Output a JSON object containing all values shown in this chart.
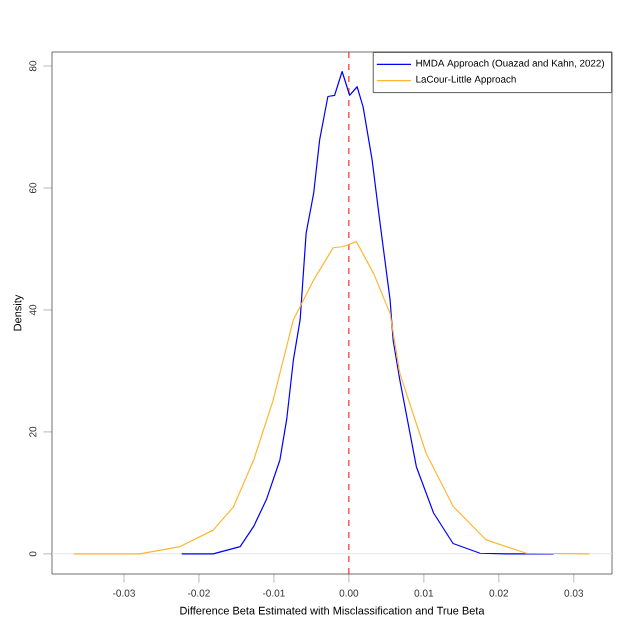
{
  "chart_data": {
    "type": "line",
    "xlabel": "Difference Beta Estimated with Misclassification and True Beta",
    "ylabel": "Density",
    "xlim": [
      -0.0396,
      0.0351
    ],
    "ylim": [
      -3.3,
      82.3
    ],
    "xticks": [
      {
        "value": -0.03,
        "label": "-0.03"
      },
      {
        "value": -0.02,
        "label": "-0.02"
      },
      {
        "value": -0.01,
        "label": "-0.01"
      },
      {
        "value": 0,
        "label": "0.00"
      },
      {
        "value": 0.01,
        "label": "0.01"
      },
      {
        "value": 0.02,
        "label": "0.02"
      },
      {
        "value": 0.03,
        "label": "0.03"
      }
    ],
    "yticks": [
      0,
      20,
      40,
      60,
      80
    ],
    "legend": "top right",
    "grid": false,
    "marker": "none",
    "line_style": "solid",
    "ref_lines": [
      {
        "axis": "x",
        "value": 0,
        "color": "#ff0000",
        "line_style": "dashed"
      },
      {
        "axis": "y",
        "value": 0,
        "color": "#e6e6e6",
        "line_style": "solid"
      }
    ],
    "series": [
      {
        "name": "HMDA Approach (Ouazad and Kahn, 2022)",
        "color": "#0000ff",
        "x": [
          -0.0223,
          -0.0181,
          -0.0145,
          -0.0127,
          -0.011,
          -0.0092,
          -0.0083,
          -0.0074,
          -0.0065,
          -0.0057,
          -0.0047,
          -0.0039,
          -0.0028,
          -0.0019,
          -0.0009,
          0.0001,
          0.0011,
          0.0019,
          0.0031,
          0.0041,
          0.0055,
          0.0059,
          0.0068,
          0.009,
          0.0113,
          0.0139,
          0.0175,
          0.021,
          0.0273
        ],
        "values": [
          0,
          0,
          1.2,
          4.5,
          8.9,
          15.4,
          22,
          31.8,
          38.4,
          52.6,
          59.1,
          67.9,
          75,
          75.2,
          79.1,
          75.2,
          76.6,
          73.3,
          64.6,
          54.8,
          41.6,
          35.1,
          28.5,
          14.3,
          6.7,
          1.7,
          0.1,
          0,
          0
        ]
      },
      {
        "name": "LaCour-Little Approach",
        "color": "#ffb733",
        "x": [
          -0.0367,
          -0.0279,
          -0.0225,
          -0.0181,
          -0.0154,
          -0.0127,
          -0.0101,
          -0.0074,
          -0.0047,
          -0.0021,
          -0.0007,
          0.001,
          0.0033,
          0.0055,
          0.0068,
          0.0103,
          0.0139,
          0.0183,
          0.0237,
          0.0321
        ],
        "values": [
          0,
          0,
          1.2,
          3.9,
          7.7,
          15.4,
          25.2,
          38.4,
          44.9,
          50.2,
          50.4,
          51.2,
          46,
          39.4,
          29.6,
          16.5,
          7.8,
          2.3,
          0.1,
          0
        ]
      }
    ]
  }
}
